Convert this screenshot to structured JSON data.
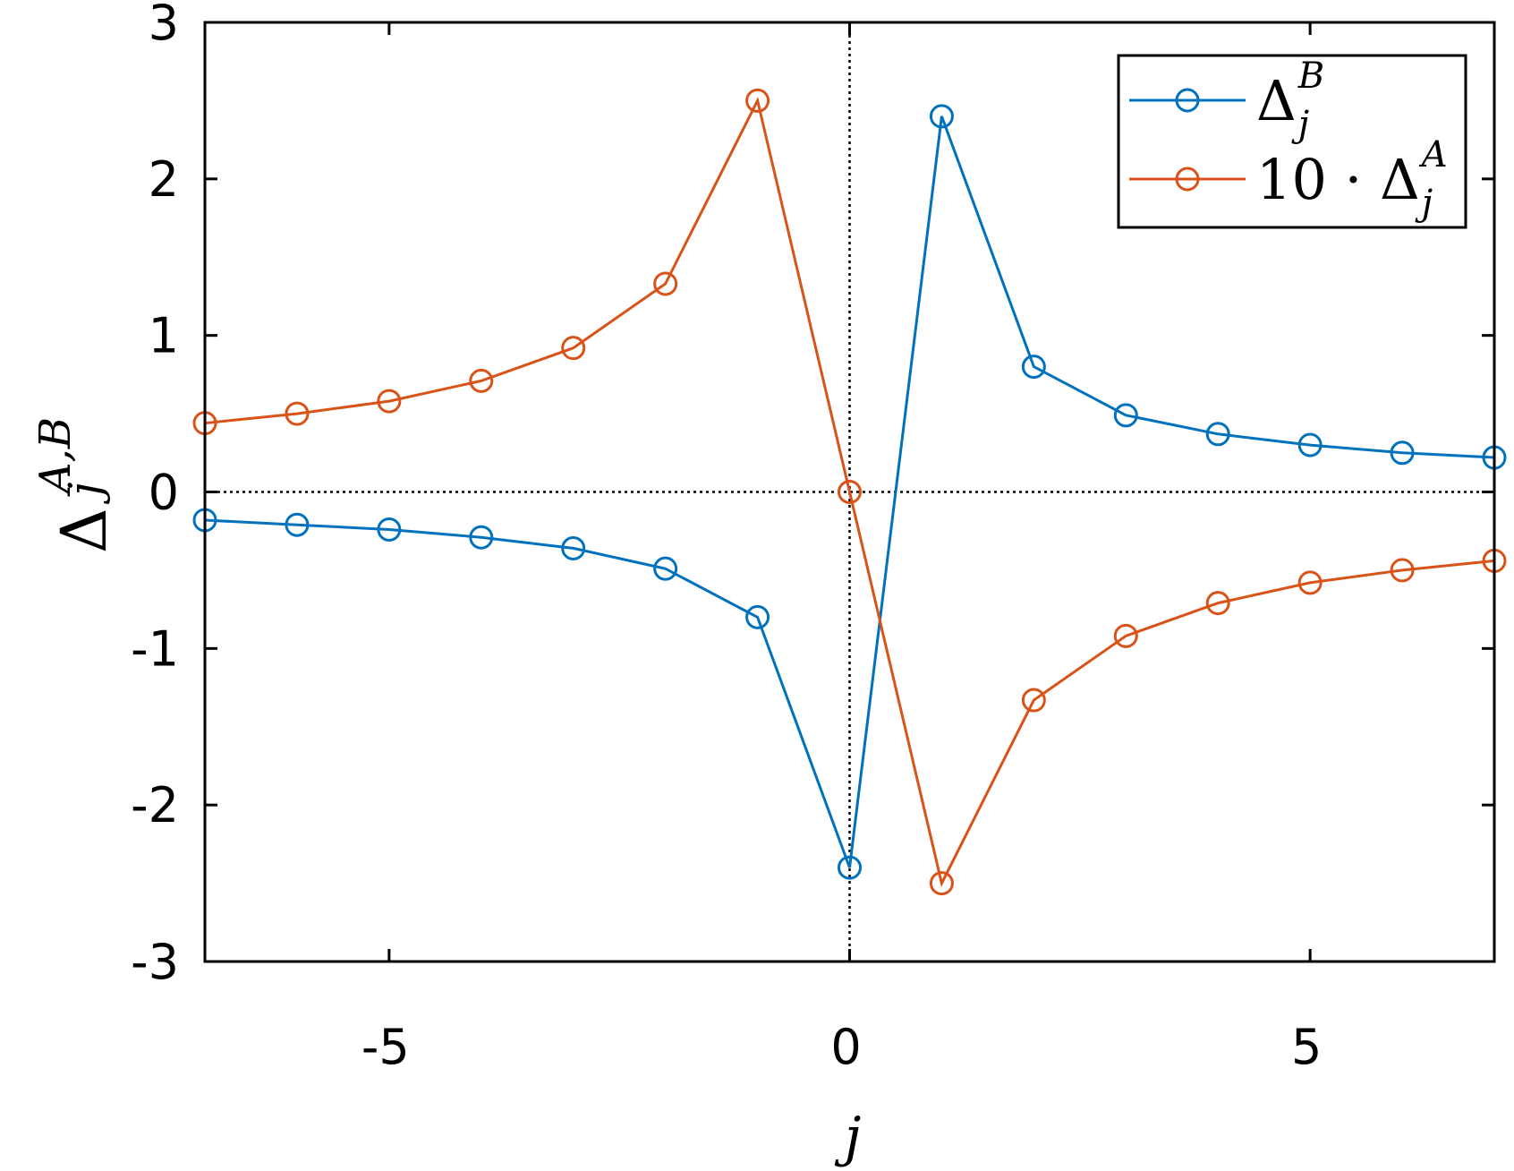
{
  "chart_data": {
    "type": "line",
    "x": [
      -7,
      -6,
      -5,
      -4,
      -3,
      -2,
      -1,
      0,
      1,
      2,
      3,
      4,
      5,
      6,
      7
    ],
    "series": [
      {
        "name_main": "Δ",
        "name_sub": "j",
        "name_sup": "B",
        "color": "#0072BD",
        "marker": "circle-open",
        "values": [
          -0.18,
          -0.21,
          -0.24,
          -0.29,
          -0.36,
          -0.49,
          -0.8,
          -2.4,
          2.4,
          0.8,
          0.49,
          0.37,
          0.3,
          0.25,
          0.22
        ]
      },
      {
        "name_main": "10 · Δ",
        "name_sub": "j",
        "name_sup": "A",
        "color": "#D95319",
        "marker": "circle-open",
        "values": [
          0.44,
          0.5,
          0.58,
          0.71,
          0.92,
          1.33,
          2.5,
          0.0,
          -2.5,
          -1.33,
          -0.92,
          -0.71,
          -0.58,
          -0.5,
          -0.44
        ]
      }
    ],
    "xlim": [
      -7,
      7
    ],
    "ylim": [
      -3,
      3
    ],
    "xticks": [
      -5,
      0,
      5
    ],
    "yticks": [
      -3,
      -2,
      -1,
      0,
      1,
      2,
      3
    ],
    "xtick_labels": [
      "-5",
      "0",
      "5"
    ],
    "ytick_labels": [
      "-3",
      "-2",
      "-1",
      "0",
      "1",
      "2",
      "3"
    ],
    "xlabel": "j",
    "ylabel_main": "Δ",
    "ylabel_sub": "j",
    "ylabel_sup": "A,B",
    "reference_lines": {
      "x": 0,
      "y": 0,
      "style": "dotted"
    },
    "grid": false,
    "legend_position": "top-right"
  }
}
